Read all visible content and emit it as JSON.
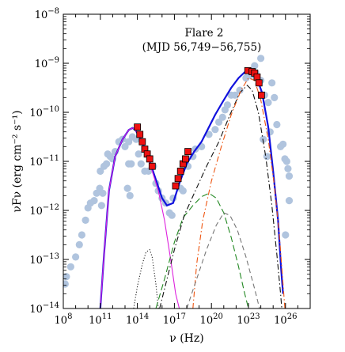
{
  "chart_data": {
    "type": "scatter",
    "title": "",
    "annotation": {
      "line1": "Flare 2",
      "line2": "(MJD 56,749−56,755)"
    },
    "xlabel": "ν (Hz)",
    "ylabel": "νFν (erg cm⁻² s⁻¹)",
    "x_scale": "log",
    "y_scale": "log",
    "xlim": [
      100000000.0,
      1e+28
    ],
    "ylim": [
      1e-14,
      1e-08
    ],
    "x_ticks": [
      {
        "value": 100000000.0,
        "base": "10",
        "exp": "8"
      },
      {
        "value": 100000000000.0,
        "base": "10",
        "exp": "11"
      },
      {
        "value": 100000000000000.0,
        "base": "10",
        "exp": "14"
      },
      {
        "value": 1e+17,
        "base": "10",
        "exp": "17"
      },
      {
        "value": 1e+20,
        "base": "10",
        "exp": "20"
      },
      {
        "value": 1e+23,
        "base": "10",
        "exp": "23"
      },
      {
        "value": 1e+26,
        "base": "10",
        "exp": "26"
      }
    ],
    "y_ticks": [
      {
        "value": 1e-14,
        "base": "10",
        "exp": "−14"
      },
      {
        "value": 1e-13,
        "base": "10",
        "exp": "−13"
      },
      {
        "value": 1e-12,
        "base": "10",
        "exp": "−12"
      },
      {
        "value": 1e-11,
        "base": "10",
        "exp": "−11"
      },
      {
        "value": 1e-10,
        "base": "10",
        "exp": "−10"
      },
      {
        "value": 1e-09,
        "base": "10",
        "exp": "−9"
      },
      {
        "value": 1e-08,
        "base": "10",
        "exp": "−8"
      }
    ],
    "colors": {
      "archival": "#b0c4de",
      "flare": "#ee1111",
      "total": "#1111dd",
      "synchrotron": "#dd22dd",
      "disk": "#222222",
      "ssc": "#228822",
      "ec_dashdot": "#111111",
      "ec_orange": "#ee5511",
      "ec_gray": "#777777"
    },
    "series": [
      {
        "style": "archival",
        "points": [
          [
            8.15,
            -13.5
          ],
          [
            8.25,
            -13.35
          ],
          [
            8.6,
            -13.15
          ],
          [
            9.0,
            -12.95
          ],
          [
            9.3,
            -12.7
          ],
          [
            9.5,
            -12.5
          ],
          [
            9.8,
            -12.2
          ],
          [
            10.0,
            -11.95
          ],
          [
            10.2,
            -11.85
          ],
          [
            10.5,
            -11.8
          ],
          [
            10.7,
            -11.65
          ],
          [
            10.95,
            -11.55
          ],
          [
            11.1,
            -11.9
          ],
          [
            11.2,
            -11.65
          ],
          [
            11.0,
            -11.2
          ],
          [
            11.3,
            -11.1
          ],
          [
            11.5,
            -11.05
          ],
          [
            11.6,
            -10.85
          ],
          [
            11.8,
            -10.9
          ],
          [
            12.0,
            -10.95
          ],
          [
            12.2,
            -10.8
          ],
          [
            12.5,
            -10.6
          ],
          [
            12.8,
            -10.55
          ],
          [
            13.0,
            -10.7
          ],
          [
            13.3,
            -10.6
          ],
          [
            13.2,
            -11.55
          ],
          [
            13.3,
            -11.05
          ],
          [
            13.5,
            -11.05
          ],
          [
            13.4,
            -11.7
          ],
          [
            13.6,
            -10.5
          ],
          [
            13.9,
            -10.55
          ],
          [
            14.1,
            -10.85
          ],
          [
            14.3,
            -11.05
          ],
          [
            14.6,
            -11.2
          ],
          [
            14.9,
            -11.2
          ],
          [
            15.3,
            -11.1
          ],
          [
            15.5,
            -11.45
          ],
          [
            15.7,
            -11.6
          ],
          [
            16.0,
            -11.75
          ],
          [
            16.3,
            -11.85
          ],
          [
            16.6,
            -12.05
          ],
          [
            16.8,
            -12.1
          ],
          [
            16.9,
            -11.75
          ],
          [
            17.5,
            -11.55
          ],
          [
            17.7,
            -11.6
          ],
          [
            18.1,
            -11.1
          ],
          [
            18.5,
            -10.9
          ],
          [
            18.7,
            -10.75
          ],
          [
            19.2,
            -10.7
          ],
          [
            19.8,
            -10.45
          ],
          [
            20.3,
            -10.35
          ],
          [
            20.6,
            -10.2
          ],
          [
            20.9,
            -10.1
          ],
          [
            21.1,
            -9.95
          ],
          [
            21.3,
            -9.85
          ],
          [
            21.6,
            -9.65
          ],
          [
            21.9,
            -9.65
          ],
          [
            22.3,
            -9.55
          ],
          [
            22.8,
            -9.3
          ],
          [
            23.2,
            -9.25
          ],
          [
            23.6,
            -9.2
          ],
          [
            24.0,
            -9.35
          ],
          [
            24.3,
            -9.65
          ],
          [
            24.6,
            -9.8
          ],
          [
            24.75,
            -10.4
          ],
          [
            24.9,
            -9.4
          ],
          [
            25.1,
            -9.7
          ],
          [
            25.3,
            -10.25
          ],
          [
            25.6,
            -10.7
          ],
          [
            25.8,
            -10.65
          ],
          [
            25.95,
            -10.95
          ],
          [
            26.1,
            -11.0
          ],
          [
            26.2,
            -11.15
          ],
          [
            26.3,
            -11.3
          ],
          [
            26.3,
            -11.8
          ],
          [
            24.0,
            -8.9
          ],
          [
            23.5,
            -9.05
          ],
          [
            24.5,
            -10.9
          ],
          [
            26.0,
            -12.5
          ],
          [
            24.2,
            -10.55
          ]
        ]
      },
      {
        "style": "flare",
        "points": [
          [
            14.0,
            -10.3
          ],
          [
            14.2,
            -10.45
          ],
          [
            14.4,
            -10.6
          ],
          [
            14.6,
            -10.75
          ],
          [
            14.8,
            -10.85
          ],
          [
            15.0,
            -10.95
          ],
          [
            15.2,
            -11.1
          ],
          [
            17.1,
            -11.5
          ],
          [
            17.3,
            -11.35
          ],
          [
            17.5,
            -11.2
          ],
          [
            17.7,
            -11.05
          ],
          [
            17.9,
            -10.95
          ],
          [
            18.1,
            -10.8
          ],
          [
            22.95,
            -9.15
          ],
          [
            23.3,
            -9.17
          ],
          [
            23.5,
            -9.2
          ],
          [
            23.7,
            -9.28
          ],
          [
            23.85,
            -9.4
          ],
          [
            24.05,
            -9.65
          ]
        ]
      }
    ],
    "model_curves": [
      {
        "style": "total",
        "dash": "",
        "points": [
          [
            11.0,
            -14.0
          ],
          [
            11.3,
            -12.9
          ],
          [
            11.7,
            -11.6
          ],
          [
            12.2,
            -10.9
          ],
          [
            12.8,
            -10.55
          ],
          [
            13.3,
            -10.36
          ],
          [
            13.6,
            -10.32
          ],
          [
            13.8,
            -10.35
          ],
          [
            14.2,
            -10.5
          ],
          [
            14.7,
            -10.8
          ],
          [
            15.2,
            -11.15
          ],
          [
            15.6,
            -11.45
          ],
          [
            16.0,
            -11.75
          ],
          [
            16.4,
            -11.9
          ],
          [
            16.9,
            -11.85
          ],
          [
            17.4,
            -11.45
          ],
          [
            18.0,
            -11.05
          ],
          [
            18.6,
            -10.8
          ],
          [
            19.2,
            -10.6
          ],
          [
            19.7,
            -10.35
          ],
          [
            20.3,
            -10.05
          ],
          [
            21.0,
            -9.75
          ],
          [
            21.6,
            -9.5
          ],
          [
            22.2,
            -9.3
          ],
          [
            22.7,
            -9.18
          ],
          [
            23.2,
            -9.15
          ],
          [
            23.6,
            -9.25
          ],
          [
            24.1,
            -9.6
          ],
          [
            24.6,
            -10.3
          ],
          [
            25.0,
            -11.2
          ],
          [
            25.4,
            -12.2
          ],
          [
            25.65,
            -13.2
          ],
          [
            25.8,
            -13.7
          ]
        ]
      },
      {
        "style": "synchrotron",
        "dash": "",
        "points": [
          [
            11.0,
            -14.0
          ],
          [
            11.3,
            -12.9
          ],
          [
            11.7,
            -11.6
          ],
          [
            12.2,
            -10.9
          ],
          [
            12.8,
            -10.55
          ],
          [
            13.3,
            -10.36
          ],
          [
            13.6,
            -10.32
          ],
          [
            13.8,
            -10.35
          ],
          [
            14.2,
            -10.5
          ],
          [
            14.7,
            -10.8
          ],
          [
            15.2,
            -11.2
          ],
          [
            15.7,
            -11.6
          ],
          [
            16.2,
            -12.2
          ],
          [
            16.7,
            -13.0
          ],
          [
            17.1,
            -13.7
          ],
          [
            17.4,
            -14.0
          ]
        ]
      },
      {
        "style": "disk",
        "dash": "1.2 2.2",
        "points": [
          [
            13.7,
            -14.0
          ],
          [
            14.0,
            -13.55
          ],
          [
            14.4,
            -13.1
          ],
          [
            14.7,
            -12.85
          ],
          [
            15.0,
            -12.8
          ],
          [
            15.2,
            -12.95
          ],
          [
            15.5,
            -13.5
          ],
          [
            15.7,
            -14.0
          ]
        ]
      },
      {
        "style": "ssc",
        "dash": "8 4",
        "points": [
          [
            15.5,
            -14.0
          ],
          [
            16.2,
            -13.4
          ],
          [
            17.0,
            -12.65
          ],
          [
            17.7,
            -12.15
          ],
          [
            18.5,
            -11.9
          ],
          [
            19.2,
            -11.72
          ],
          [
            19.8,
            -11.65
          ],
          [
            20.4,
            -11.75
          ],
          [
            21.0,
            -12.05
          ],
          [
            21.6,
            -12.55
          ],
          [
            22.2,
            -13.15
          ],
          [
            22.7,
            -13.7
          ],
          [
            23.0,
            -14.0
          ]
        ]
      },
      {
        "style": "ec_dashdot",
        "dash": "7 3 1.5 3",
        "points": [
          [
            15.8,
            -14.0
          ],
          [
            16.3,
            -13.5
          ],
          [
            17.0,
            -12.8
          ],
          [
            17.8,
            -12.1
          ],
          [
            18.7,
            -11.6
          ],
          [
            19.6,
            -11.1
          ],
          [
            20.6,
            -10.6
          ],
          [
            21.5,
            -10.05
          ],
          [
            22.3,
            -9.6
          ],
          [
            22.9,
            -9.45
          ],
          [
            23.3,
            -9.55
          ],
          [
            23.8,
            -10.0
          ],
          [
            24.4,
            -10.9
          ],
          [
            24.9,
            -11.9
          ],
          [
            25.3,
            -12.9
          ],
          [
            25.6,
            -13.7
          ],
          [
            25.7,
            -14.0
          ]
        ]
      },
      {
        "style": "ec_orange",
        "dash": "7 3 1.5 3",
        "points": [
          [
            18.5,
            -14.0
          ],
          [
            18.8,
            -13.1
          ],
          [
            19.3,
            -12.2
          ],
          [
            20.0,
            -11.4
          ],
          [
            20.8,
            -10.7
          ],
          [
            21.6,
            -10.05
          ],
          [
            22.4,
            -9.55
          ],
          [
            23.0,
            -9.3
          ],
          [
            23.5,
            -9.35
          ],
          [
            24.0,
            -9.75
          ],
          [
            24.6,
            -10.55
          ],
          [
            25.1,
            -11.5
          ],
          [
            25.5,
            -12.5
          ],
          [
            25.8,
            -13.5
          ],
          [
            25.95,
            -14.0
          ]
        ]
      },
      {
        "style": "ec_gray",
        "dash": "6 4",
        "points": [
          [
            18.0,
            -14.0
          ],
          [
            18.8,
            -13.4
          ],
          [
            19.6,
            -12.8
          ],
          [
            20.4,
            -12.3
          ],
          [
            21.0,
            -12.05
          ],
          [
            21.5,
            -12.1
          ],
          [
            22.1,
            -12.4
          ],
          [
            22.8,
            -12.95
          ],
          [
            23.5,
            -13.6
          ],
          [
            23.9,
            -14.0
          ]
        ]
      }
    ]
  }
}
